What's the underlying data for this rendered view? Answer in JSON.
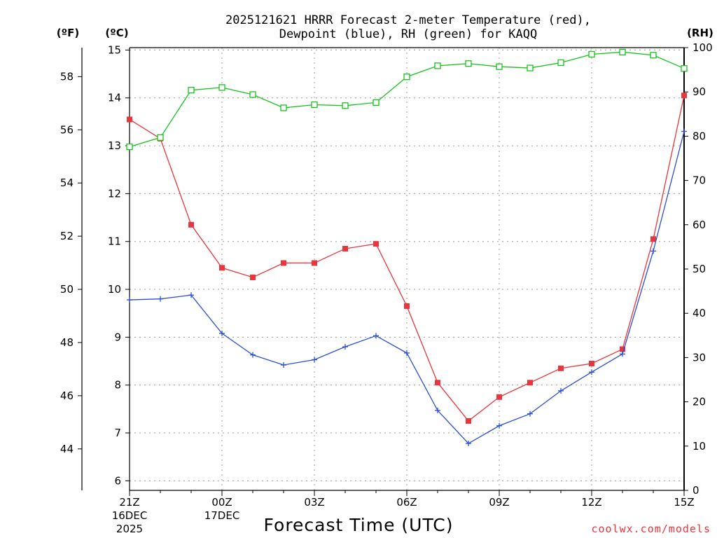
{
  "chart_data": {
    "type": "line",
    "title": [
      "2025121621 HRRR Forecast 2-meter Temperature (red),",
      "Dewpoint (blue), RH (green) for KAQQ"
    ],
    "units": {
      "fahrenheit": "(ºF)",
      "celsius": "(ºC)",
      "rh": "(RH)"
    },
    "xlabel": "Forecast Time (UTC)",
    "credit": "coolwx.com/models",
    "x_hours": [
      0,
      1,
      2,
      3,
      4,
      5,
      6,
      7,
      8,
      9,
      10,
      11,
      12,
      13,
      14,
      15,
      16,
      17,
      18
    ],
    "x_ticks": [
      {
        "hour": 0,
        "lines": [
          "21Z",
          "16DEC",
          "2025"
        ]
      },
      {
        "hour": 3,
        "lines": [
          "00Z",
          "17DEC"
        ]
      },
      {
        "hour": 6,
        "lines": [
          "03Z"
        ]
      },
      {
        "hour": 9,
        "lines": [
          "06Z"
        ]
      },
      {
        "hour": 12,
        "lines": [
          "09Z"
        ]
      },
      {
        "hour": 15,
        "lines": [
          "12Z"
        ]
      },
      {
        "hour": 18,
        "lines": [
          "15Z"
        ]
      }
    ],
    "celsius_axis": {
      "range": [
        5.8,
        15.05
      ],
      "ticks": [
        6,
        7,
        8,
        9,
        10,
        11,
        12,
        13,
        14,
        15
      ]
    },
    "fahrenheit_axis": {
      "ticks": [
        44,
        46,
        48,
        50,
        52,
        54,
        56,
        58
      ]
    },
    "rh_axis": {
      "range": [
        0,
        100
      ],
      "ticks": [
        0,
        10,
        20,
        30,
        40,
        50,
        60,
        70,
        80,
        90,
        100
      ]
    },
    "series": [
      {
        "name": "Temperature",
        "axis": "celsius",
        "color": "#e8363c",
        "marker": "filled-square",
        "values": [
          13.55,
          13.15,
          11.35,
          10.45,
          10.25,
          10.55,
          10.55,
          10.85,
          10.95,
          9.65,
          8.05,
          7.25,
          7.75,
          8.05,
          8.35,
          8.45,
          8.75,
          11.05,
          14.05
        ]
      },
      {
        "name": "Dewpoint",
        "axis": "celsius",
        "color": "#2a4fd6",
        "marker": "plus",
        "values": [
          9.78,
          9.8,
          9.88,
          9.08,
          8.63,
          8.42,
          8.53,
          8.8,
          9.03,
          8.67,
          7.47,
          6.78,
          7.15,
          7.4,
          7.88,
          8.27,
          8.65,
          10.8,
          13.3
        ]
      },
      {
        "name": "RH",
        "axis": "rh",
        "color": "#17c41c",
        "marker": "open-square",
        "values": [
          77.6,
          79.7,
          90.4,
          91.0,
          89.4,
          86.4,
          87.1,
          86.9,
          87.6,
          93.4,
          95.9,
          96.4,
          95.7,
          95.4,
          96.6,
          98.5,
          99.0,
          98.3,
          95.3
        ]
      }
    ]
  }
}
